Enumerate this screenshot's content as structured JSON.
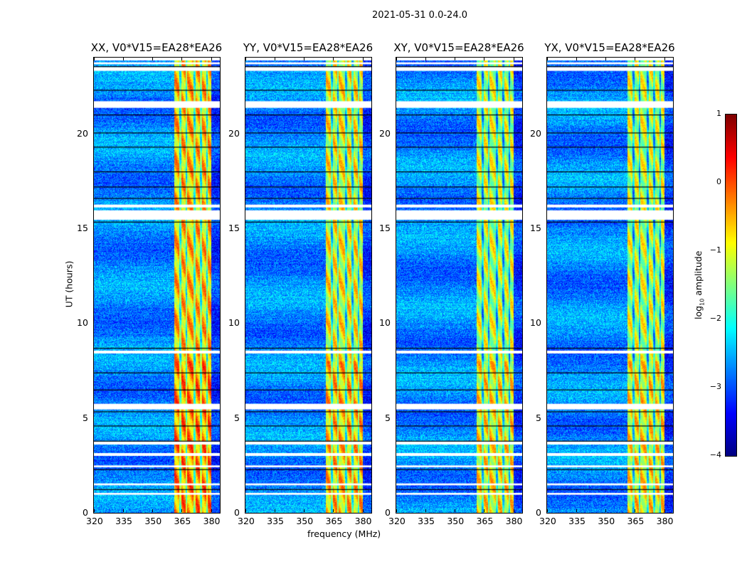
{
  "suptitle": "2021-05-31 0.0-24.0",
  "chart_data": {
    "type": "heatmap",
    "xlabel": "frequency (MHz)",
    "ylabel": "UT (hours)",
    "xlim": [
      320,
      384.5
    ],
    "ylim": [
      0,
      24
    ],
    "xticks": [
      "320",
      "335",
      "350",
      "365",
      "380"
    ],
    "yticks": [
      "0",
      "5",
      "10",
      "15",
      "20"
    ],
    "panels": [
      {
        "title": "XX, V0*V15=EA28*EA26",
        "band_level": 0.0
      },
      {
        "title": "YY, V0*V15=EA28*EA26",
        "band_level": -0.3
      },
      {
        "title": "XY, V0*V15=EA28*EA26",
        "band_level": -0.5
      },
      {
        "title": "YX, V0*V15=EA28*EA26",
        "band_level": -0.5
      }
    ],
    "signal_band_mhz": [
      361,
      380
    ],
    "background_level": -2.7,
    "flagged_hours": [
      [
        23.3,
        23.5
      ],
      [
        23.65,
        23.75
      ],
      [
        23.85,
        24.0
      ],
      [
        21.35,
        21.7
      ],
      [
        16.1,
        16.25
      ],
      [
        15.45,
        15.95
      ],
      [
        8.4,
        8.55
      ],
      [
        5.45,
        5.75
      ],
      [
        3.6,
        3.75
      ],
      [
        3.0,
        3.15
      ],
      [
        2.4,
        2.5
      ],
      [
        1.45,
        1.55
      ],
      [
        0.95,
        1.05
      ]
    ],
    "zero_rows_hours": [
      23.55,
      22.3,
      21.0,
      20.05,
      19.3,
      18.0,
      17.2,
      16.6,
      15.35,
      8.7,
      7.4,
      6.5,
      5.35,
      4.6,
      3.8,
      2.3,
      1.25
    ],
    "colorbar": {
      "label": "log10 amplitude",
      "label_main": "log",
      "label_sub": "10",
      "label_rest": " amplitude",
      "range": [
        -4,
        1
      ],
      "ticks": [
        "1",
        "0",
        "−1",
        "−2",
        "−3",
        "−4"
      ],
      "colormap": "jet"
    }
  }
}
